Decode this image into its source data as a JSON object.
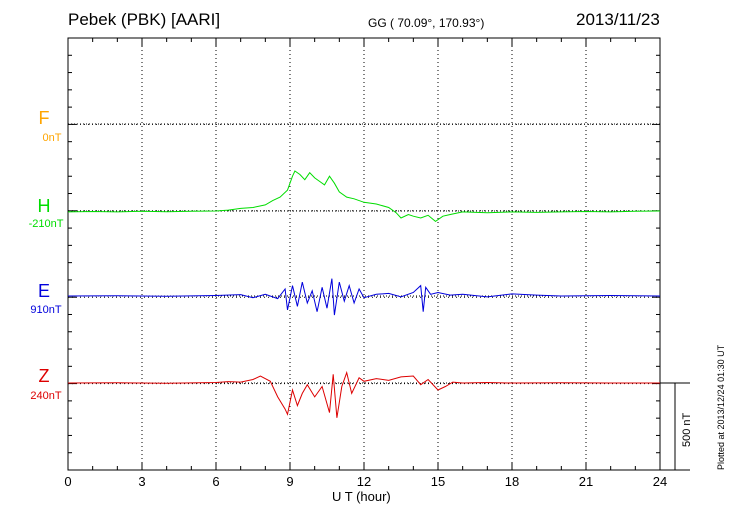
{
  "header": {
    "station": "Pebek (PBK)  [AARI]",
    "coords": "GG ( 70.09°, 170.93°)",
    "date": "2013/11/23"
  },
  "footer": {
    "plotted": "Plotted at 2013/12/24 01:30 UT"
  },
  "chart_data": {
    "type": "line",
    "xlabel": "U T (hour)",
    "xlim": [
      0,
      24
    ],
    "xticks": [
      "0",
      "3",
      "6",
      "9",
      "12",
      "15",
      "18",
      "21",
      "24"
    ],
    "scale_bar": "500 nT",
    "colors": {
      "F": "#ffa500",
      "H": "#00dd00",
      "E": "#0000dd",
      "Z": "#dd0000"
    },
    "series": [
      {
        "name": "F",
        "baseline_label": "0nT",
        "x": [],
        "y": []
      },
      {
        "name": "H",
        "baseline_label": "-210nT",
        "x": [
          0,
          1,
          2,
          3,
          4,
          5,
          6,
          6.5,
          7,
          7.5,
          8,
          8.3,
          8.6,
          8.9,
          9.1,
          9.2,
          9.4,
          9.6,
          9.8,
          10,
          10.2,
          10.4,
          10.6,
          10.8,
          11,
          11.3,
          11.6,
          12,
          12.5,
          13,
          13.3,
          13.5,
          13.8,
          14,
          14.3,
          14.6,
          14.9,
          15.2,
          15.5,
          16,
          17,
          18,
          19,
          20,
          21,
          22,
          23,
          24
        ],
        "y": [
          -5,
          -3,
          -5,
          -2,
          -4,
          -2,
          0,
          5,
          15,
          20,
          35,
          60,
          80,
          120,
          200,
          230,
          210,
          180,
          220,
          190,
          170,
          150,
          200,
          160,
          110,
          80,
          70,
          50,
          40,
          20,
          -10,
          -40,
          -20,
          -30,
          -40,
          -25,
          -60,
          -30,
          -20,
          -5,
          -10,
          -5,
          -8,
          -5,
          -3,
          -5,
          -2,
          0
        ]
      },
      {
        "name": "E",
        "baseline_label": "910nT",
        "x": [
          0,
          2,
          4,
          6,
          7,
          7.5,
          8,
          8.5,
          8.8,
          8.9,
          9.1,
          9.3,
          9.5,
          9.7,
          9.9,
          10.1,
          10.3,
          10.5,
          10.7,
          10.8,
          11,
          11.2,
          11.4,
          11.6,
          11.8,
          12,
          12.5,
          13,
          13.5,
          14,
          14.3,
          14.4,
          14.5,
          14.7,
          15,
          15.5,
          16,
          17,
          18,
          19,
          20,
          22,
          24
        ],
        "y": [
          0,
          2,
          -2,
          3,
          8,
          -10,
          10,
          -15,
          40,
          -80,
          60,
          -60,
          80,
          -40,
          30,
          -90,
          50,
          -70,
          100,
          -110,
          80,
          -30,
          60,
          -40,
          40,
          -10,
          10,
          15,
          -5,
          20,
          60,
          -90,
          50,
          10,
          20,
          5,
          10,
          -5,
          12,
          5,
          0,
          3,
          0
        ]
      },
      {
        "name": "Z",
        "baseline_label": "240nT",
        "x": [
          0,
          2,
          4,
          6,
          6.5,
          7,
          7.5,
          7.8,
          8.2,
          8.5,
          8.8,
          8.9,
          9.1,
          9.3,
          9.5,
          9.7,
          10,
          10.3,
          10.6,
          10.75,
          10.9,
          11.1,
          11.3,
          11.5,
          11.8,
          12,
          12.5,
          13,
          13.5,
          14,
          14.3,
          14.6,
          15,
          15.3,
          15.6,
          16,
          17,
          18,
          20,
          22,
          24
        ],
        "y": [
          0,
          2,
          -2,
          3,
          8,
          5,
          20,
          40,
          10,
          -80,
          -150,
          -180,
          -40,
          -130,
          -60,
          -10,
          -80,
          -20,
          -170,
          50,
          -200,
          -20,
          60,
          -60,
          30,
          10,
          25,
          15,
          35,
          40,
          -10,
          20,
          -40,
          -20,
          5,
          0,
          3,
          0,
          2,
          0,
          0
        ]
      }
    ]
  }
}
